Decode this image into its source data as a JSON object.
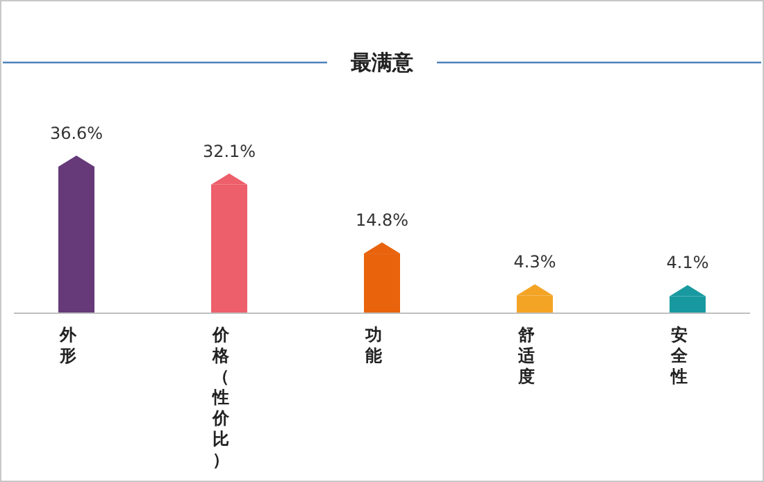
{
  "chart_data": {
    "type": "bar",
    "title": "最满意",
    "categories": [
      "外形",
      "价格（性价比）",
      "功能",
      "舒适度",
      "安全性"
    ],
    "values": [
      36.6,
      32.1,
      14.8,
      4.3,
      4.1
    ],
    "colors": [
      "#663a78",
      "#ec5f6b",
      "#e8630c",
      "#f4a425",
      "#17999f"
    ],
    "value_labels": [
      "36.6%",
      "32.1%",
      "14.8%",
      "4.3%",
      "4.1%"
    ]
  }
}
